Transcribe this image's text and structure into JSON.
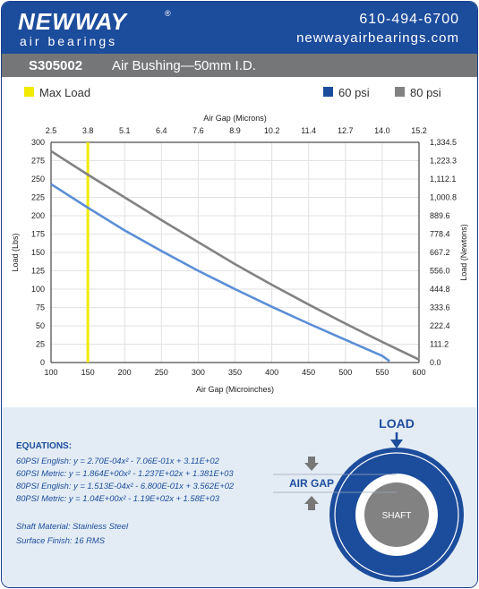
{
  "header": {
    "logo_new": "NEW",
    "logo_way": "WAY",
    "logo_reg": "®",
    "tagline": "air bearings",
    "phone": "610-494-6700",
    "website": "newwayairbearings.com"
  },
  "titlebar": {
    "part_number": "S305002",
    "description": "Air Bushing—50mm I.D."
  },
  "legend": {
    "max_load": "Max Load",
    "psi60": "60 psi",
    "psi80": "80 psi"
  },
  "colors": {
    "brand_blue": "#1c4c9c",
    "series_60": "#5b8ed6",
    "series_80": "#828282",
    "max_load": "#f2ea00",
    "gray_bar": "#757677"
  },
  "chart_data": {
    "type": "line",
    "top_axis_label": "Air Gap (Microns)",
    "xlabel": "Air Gap (Microinches)",
    "ylabel_left": "Load (Lbs)",
    "ylabel_right": "Load (Newtons)",
    "xlim": [
      100,
      600
    ],
    "ylim": [
      0,
      300
    ],
    "x_ticks": [
      "100",
      "150",
      "200",
      "250",
      "300",
      "350",
      "400",
      "450",
      "500",
      "550",
      "600"
    ],
    "top_ticks": [
      "2.5",
      "3.8",
      "5.1",
      "6.4",
      "7.6",
      "8.9",
      "10.2",
      "11.4",
      "12.7",
      "14.0",
      "15.2"
    ],
    "y_ticks": [
      "0",
      "25",
      "50",
      "75",
      "100",
      "125",
      "150",
      "175",
      "200",
      "225",
      "250",
      "275",
      "300"
    ],
    "y_right_ticks": [
      "0.0",
      "111.2",
      "222.4",
      "333.6",
      "444.8",
      "556.0",
      "667.2",
      "778.4",
      "889.6",
      "1,000.8",
      "1,112.1",
      "1,223.3",
      "1,334.5"
    ],
    "max_load_x": 150,
    "grid": true,
    "series": [
      {
        "name": "60 psi",
        "x": [
          100,
          150,
          200,
          250,
          300,
          350,
          400,
          450,
          500,
          550,
          560
        ],
        "y": [
          243,
          211,
          180,
          152,
          125,
          100,
          76,
          53,
          31,
          9,
          2
        ]
      },
      {
        "name": "80 psi",
        "x": [
          100,
          150,
          200,
          250,
          300,
          350,
          400,
          450,
          500,
          550,
          600
        ],
        "y": [
          288,
          256,
          225,
          194,
          164,
          134,
          106,
          79,
          53,
          28,
          4
        ]
      }
    ]
  },
  "equations": {
    "title": "EQUATIONS:",
    "lines": [
      "60PSI English:  y = 2.70E-04x² - 7.06E-01x + 3.11E+02",
      "60PSI Metric:  y = 1.864E+00x² - 1.237E+02x + 1.381E+03",
      "80PSI English:  y = 1.513E-04x² - 6.800E-01x + 3.562E+02",
      "80PSI Metric:  y = 1.04E+00x² - 1.19E+02x + 1.58E+03"
    ],
    "material": "Shaft Material:  Stainless Steel",
    "finish": "Surface Finish:  16 RMS"
  },
  "diagram": {
    "load_label": "LOAD",
    "air_gap_label": "AIR GAP",
    "shaft_label": "SHAFT"
  }
}
